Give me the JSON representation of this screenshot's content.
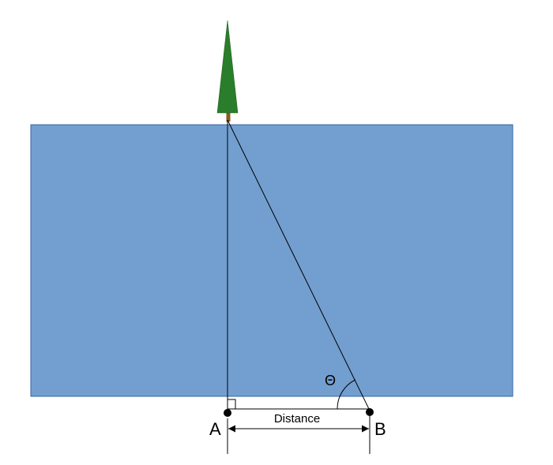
{
  "colors": {
    "river": "#729fcf",
    "river_border": "#3465a4",
    "tree": "#2a7d2a",
    "trunk": "#8b5a1e",
    "line": "#000000"
  },
  "labels": {
    "point_a": "A",
    "point_b": "B",
    "distance": "Distance",
    "angle": "Θ"
  }
}
